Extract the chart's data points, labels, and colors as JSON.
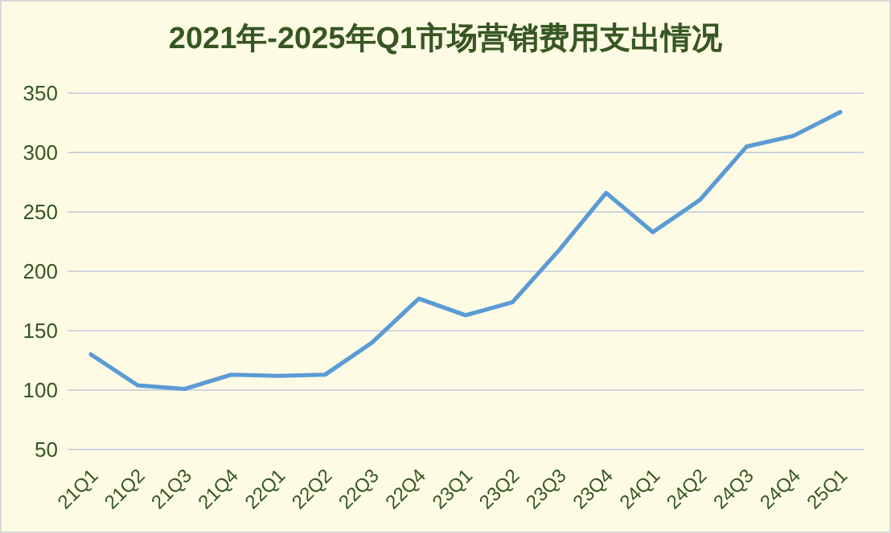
{
  "chart_data": {
    "type": "line",
    "title": "2021年-2025年Q1市场营销费用支出情况",
    "categories": [
      "21Q1",
      "21Q2",
      "21Q3",
      "21Q4",
      "22Q1",
      "22Q2",
      "22Q3",
      "22Q4",
      "23Q1",
      "23Q2",
      "23Q3",
      "23Q4",
      "24Q1",
      "24Q2",
      "24Q3",
      "24Q4",
      "25Q1"
    ],
    "series": [
      {
        "color": "#5b9bd5",
        "values": [
          130,
          104,
          101,
          113,
          112,
          113,
          140,
          177,
          163,
          174,
          218,
          266,
          233,
          260,
          305,
          314,
          334
        ]
      }
    ],
    "ylim": [
      50,
      350
    ],
    "yticks": [
      50,
      100,
      150,
      200,
      250,
      300,
      350
    ],
    "grid": "y",
    "marker": "none",
    "line_style": "solid"
  }
}
